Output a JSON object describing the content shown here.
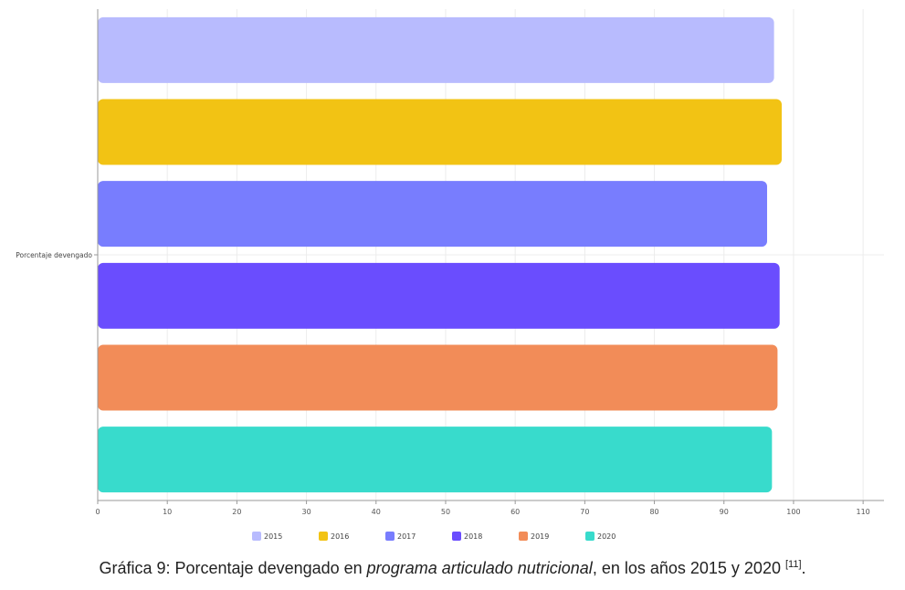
{
  "chart_data": {
    "type": "bar",
    "orientation": "horizontal",
    "categories": [
      "Porcentaje devengado"
    ],
    "series": [
      {
        "name": "2015",
        "values": [
          97.2
        ],
        "color": "#b8bbfe"
      },
      {
        "name": "2016",
        "values": [
          98.3
        ],
        "color": "#f2c314"
      },
      {
        "name": "2017",
        "values": [
          96.2
        ],
        "color": "#787dfe"
      },
      {
        "name": "2018",
        "values": [
          98.0
        ],
        "color": "#6a4dfe"
      },
      {
        "name": "2019",
        "values": [
          97.7
        ],
        "color": "#f28c58"
      },
      {
        "name": "2020",
        "values": [
          96.9
        ],
        "color": "#38dbcc"
      }
    ],
    "xlim": [
      0,
      113
    ],
    "xticks": [
      0,
      10,
      20,
      30,
      40,
      50,
      60,
      70,
      80,
      90,
      100,
      110
    ],
    "grid": true,
    "legend": "bottom"
  },
  "caption": {
    "prefix": "Gráfica 9: Porcentaje devengado en ",
    "emphasis": "programa articulado nutricional",
    "suffix": ", en los años 2015 y 2020 ",
    "ref": "[11]",
    "end": "."
  }
}
